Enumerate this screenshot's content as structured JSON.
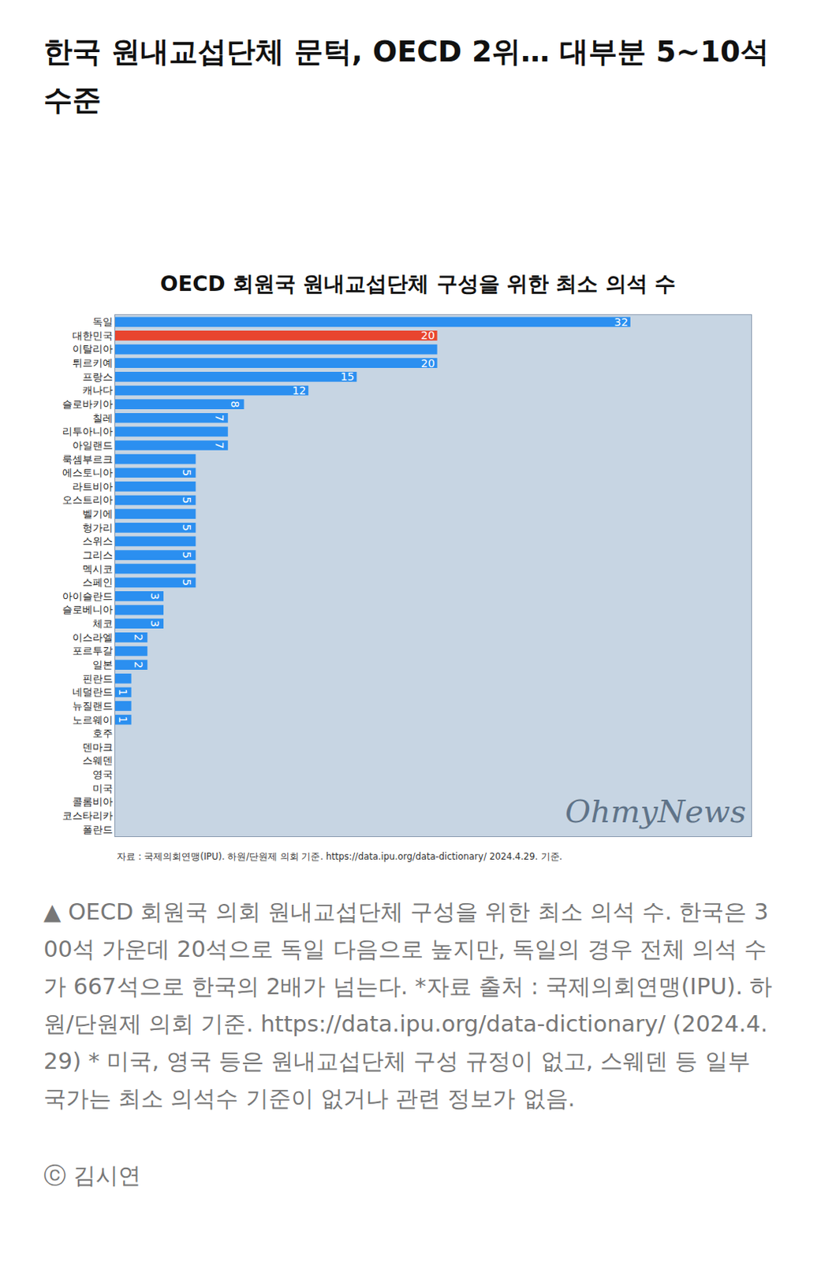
{
  "header": {
    "title": "한국 원내교섭단체 문턱, OECD 2위… 대부분 5~10석 수준"
  },
  "chart_data": {
    "type": "bar",
    "title": "OECD 회원국 원내교섭단체 구성을 위한 최소 의석 수",
    "orientation": "horizontal",
    "categories": [
      "독일",
      "대한민국",
      "이탈리아",
      "튀르키예",
      "프랑스",
      "캐나다",
      "슬로바키아",
      "칠레",
      "리투아니아",
      "아일랜드",
      "룩셈부르크",
      "에스토니아",
      "라트비아",
      "오스트리아",
      "벨기에",
      "헝가리",
      "스위스",
      "그리스",
      "멕시코",
      "스페인",
      "아이슬란드",
      "슬로베니아",
      "체코",
      "이스라엘",
      "포르투갈",
      "일본",
      "핀란드",
      "네덜란드",
      "뉴질랜드",
      "노르웨이",
      "호주",
      "덴마크",
      "스웨덴",
      "영국",
      "미국",
      "콜롬비아",
      "코스타리카",
      "폴란드"
    ],
    "values": [
      32,
      20,
      20,
      20,
      15,
      12,
      8,
      7,
      7,
      7,
      5,
      5,
      5,
      5,
      5,
      5,
      5,
      5,
      5,
      5,
      3,
      3,
      3,
      2,
      2,
      2,
      1,
      1,
      1,
      1,
      null,
      null,
      null,
      null,
      null,
      null,
      null,
      null
    ],
    "value_labels": [
      "32",
      "20",
      null,
      "20",
      "15",
      "12",
      "8",
      "7",
      null,
      "7",
      null,
      "5",
      null,
      "5",
      null,
      "5",
      null,
      "5",
      null,
      "5",
      "3",
      null,
      "3",
      "2",
      null,
      "2",
      null,
      "1",
      null,
      "1",
      null,
      null,
      null,
      null,
      null,
      null,
      null,
      null
    ],
    "data_labels": true,
    "colors": [
      "#2b8ff0",
      "#e8452f",
      "#2b8ff0",
      "#2b8ff0",
      "#2b8ff0",
      "#2b8ff0",
      "#2b8ff0",
      "#2b8ff0",
      "#2b8ff0",
      "#2b8ff0",
      "#2b8ff0",
      "#2b8ff0",
      "#2b8ff0",
      "#2b8ff0",
      "#2b8ff0",
      "#2b8ff0",
      "#2b8ff0",
      "#2b8ff0",
      "#2b8ff0",
      "#2b8ff0",
      "#2b8ff0",
      "#2b8ff0",
      "#2b8ff0",
      "#2b8ff0",
      "#2b8ff0",
      "#2b8ff0",
      "#2b8ff0",
      "#2b8ff0",
      "#2b8ff0",
      "#2b8ff0",
      "#2b8ff0",
      "#2b8ff0",
      "#2b8ff0",
      "#2b8ff0",
      "#2b8ff0",
      "#2b8ff0",
      "#2b8ff0",
      "#2b8ff0"
    ],
    "xlim": [
      0,
      39.5
    ],
    "tick_labels": "y",
    "grid": false,
    "source": "자료 : 국제의회연맹(IPU). 하원/단원제 의회 기준. https://data.ipu.org/data-dictionary/ 2024.4.29. 기준.",
    "watermark": "OhmyNews"
  },
  "caption": {
    "text": "▲ OECD 회원국 의회 원내교섭단체 구성을 위한 최소 의석 수. 한국은 300석 가운데 20석으로 독일 다음으로 높지만, 독일의 경우 전체 의석 수가 667석으로 한국의 2배가 넘는다. *자료 출처 : 국제의회연맹(IPU). 하원/단원제 의회 기준. https://data.ipu.org/data-dictionary/ (2024.4.29) * 미국, 영국 등은 원내교섭단체 구성 규정이 없고, 스웨덴 등 일부 국가는 최소 의석수 기준이 없거나 관련 정보가 없음.",
    "credit": "ⓒ 김시연"
  }
}
